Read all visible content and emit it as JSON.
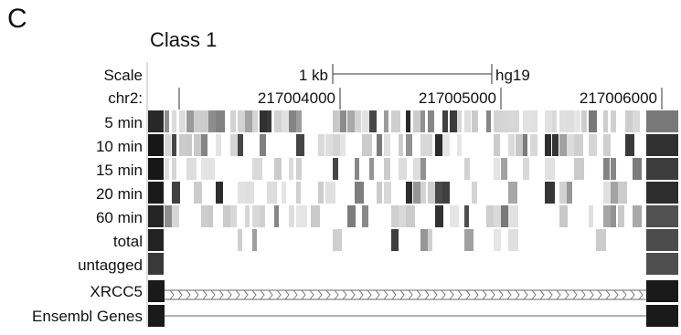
{
  "panel_letter": "C",
  "class_title": "Class 1",
  "scale": {
    "label": "Scale",
    "bar_label": "1 kb",
    "assembly": "hg19"
  },
  "position": {
    "chrom_label": "chr2:",
    "ticks": [
      "217004000",
      "217005000",
      "217006000"
    ]
  },
  "tracks": [
    {
      "label": "5 min"
    },
    {
      "label": "10 min"
    },
    {
      "label": "15 min"
    },
    {
      "label": "20 min"
    },
    {
      "label": "60 min"
    },
    {
      "label": "total"
    },
    {
      "label": "untagged"
    }
  ],
  "gene_tracks": [
    {
      "label": "XRCC5"
    },
    {
      "label": "Ensembl Genes"
    }
  ],
  "colors": {
    "signal_dark": "#111111",
    "signal_light": "#e4e4e4",
    "exon": "#1a1a1a",
    "line": "#555555"
  }
}
